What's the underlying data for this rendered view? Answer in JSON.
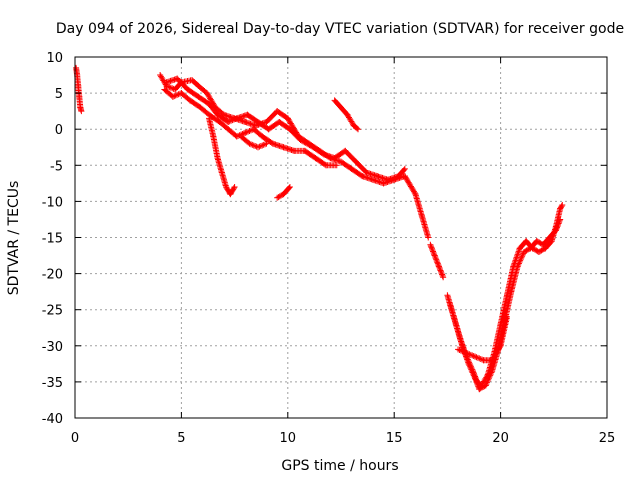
{
  "chart_data": {
    "type": "scatter",
    "title": "Day 094 of 2026, Sidereal Day-to-day VTEC variation (SDTVAR) for receiver gode",
    "xlabel": "GPS time / hours",
    "ylabel": "SDTVAR / TECUs",
    "xlim": [
      0,
      25
    ],
    "ylim": [
      -40,
      10
    ],
    "xticks": [
      0,
      5,
      10,
      15,
      20,
      25
    ],
    "yticks": [
      10,
      5,
      0,
      -5,
      -10,
      -15,
      -20,
      -25,
      -30,
      -35,
      -40
    ],
    "grid": true,
    "marker": "+",
    "series": [
      {
        "name": "SDTVAR",
        "color": "#ff0000",
        "segments": [
          [
            [
              0.05,
              8.5
            ],
            [
              0.1,
              7.5
            ],
            [
              0.15,
              6.0
            ],
            [
              0.2,
              4.5
            ],
            [
              0.25,
              3.0
            ],
            [
              0.3,
              2.5
            ]
          ],
          [
            [
              4.0,
              7.5
            ],
            [
              4.3,
              6.0
            ],
            [
              4.7,
              5.5
            ],
            [
              5.0,
              6.5
            ],
            [
              5.5,
              6.8
            ],
            [
              5.8,
              6.0
            ],
            [
              6.2,
              5.0
            ],
            [
              6.6,
              3.0
            ],
            [
              7.0,
              2.0
            ],
            [
              7.5,
              1.5
            ],
            [
              8.0,
              1.0
            ],
            [
              8.5,
              0.5
            ],
            [
              9.0,
              1.0
            ],
            [
              9.5,
              2.5
            ],
            [
              10.0,
              1.5
            ],
            [
              10.5,
              -1.0
            ],
            [
              11.0,
              -2.0
            ],
            [
              11.5,
              -3.0
            ],
            [
              12.0,
              -4.0
            ],
            [
              12.5,
              -4.5
            ],
            [
              13.0,
              -5.5
            ],
            [
              13.5,
              -6.5
            ],
            [
              14.0,
              -7.0
            ],
            [
              14.5,
              -7.5
            ],
            [
              15.0,
              -7.0
            ],
            [
              15.5,
              -6.5
            ],
            [
              16.0,
              -9.0
            ],
            [
              16.3,
              -12.0
            ],
            [
              16.6,
              -15.0
            ]
          ],
          [
            [
              4.2,
              5.5
            ],
            [
              4.6,
              4.5
            ],
            [
              5.0,
              5.0
            ],
            [
              5.4,
              4.0
            ],
            [
              5.9,
              3.0
            ],
            [
              6.3,
              2.0
            ],
            [
              6.8,
              1.0
            ],
            [
              7.2,
              0.0
            ],
            [
              7.6,
              -1.0
            ],
            [
              8.0,
              -0.5
            ],
            [
              8.4,
              0.0
            ],
            [
              8.8,
              -1.0
            ],
            [
              9.3,
              -2.0
            ],
            [
              9.8,
              -2.5
            ],
            [
              10.3,
              -3.0
            ],
            [
              10.8,
              -3.0
            ],
            [
              11.3,
              -4.0
            ],
            [
              11.8,
              -5.0
            ],
            [
              12.3,
              -5.0
            ]
          ],
          [
            [
              4.3,
              6.5
            ],
            [
              4.8,
              7.0
            ],
            [
              5.3,
              5.5
            ],
            [
              5.8,
              4.5
            ],
            [
              6.3,
              3.5
            ],
            [
              6.7,
              2.0
            ],
            [
              7.2,
              1.0
            ],
            [
              7.6,
              1.5
            ],
            [
              8.1,
              2.0
            ],
            [
              8.6,
              1.0
            ],
            [
              9.1,
              0.0
            ],
            [
              9.6,
              1.0
            ],
            [
              10.1,
              0.0
            ],
            [
              10.6,
              -1.5
            ],
            [
              11.2,
              -2.5
            ],
            [
              11.7,
              -3.5
            ],
            [
              12.2,
              -4.0
            ],
            [
              12.7,
              -3.0
            ],
            [
              13.2,
              -4.5
            ],
            [
              13.7,
              -6.0
            ],
            [
              14.2,
              -6.5
            ],
            [
              14.7,
              -7.0
            ],
            [
              15.2,
              -6.5
            ],
            [
              15.5,
              -5.5
            ]
          ],
          [
            [
              6.3,
              1.5
            ],
            [
              6.5,
              -1.0
            ],
            [
              6.7,
              -4.0
            ],
            [
              6.9,
              -6.0
            ],
            [
              7.1,
              -8.0
            ],
            [
              7.3,
              -9.0
            ],
            [
              7.5,
              -8.0
            ]
          ],
          [
            [
              7.8,
              -1.0
            ],
            [
              8.2,
              -2.0
            ],
            [
              8.6,
              -2.5
            ],
            [
              9.0,
              -2.0
            ]
          ],
          [
            [
              9.5,
              -9.5
            ],
            [
              9.8,
              -9.0
            ],
            [
              10.1,
              -8.0
            ]
          ],
          [
            [
              12.2,
              4.0
            ],
            [
              12.5,
              3.0
            ],
            [
              12.8,
              2.0
            ],
            [
              13.1,
              0.5
            ],
            [
              13.3,
              0.0
            ]
          ],
          [
            [
              16.7,
              -16.0
            ],
            [
              16.9,
              -17.5
            ],
            [
              17.1,
              -19.0
            ],
            [
              17.3,
              -20.5
            ]
          ],
          [
            [
              17.5,
              -23.0
            ],
            [
              17.8,
              -26.0
            ],
            [
              18.1,
              -29.0
            ],
            [
              18.4,
              -31.5
            ],
            [
              18.7,
              -33.5
            ],
            [
              18.9,
              -35.0
            ],
            [
              19.1,
              -35.5
            ],
            [
              19.4,
              -34.0
            ],
            [
              19.7,
              -31.0
            ],
            [
              20.0,
              -27.0
            ],
            [
              20.3,
              -23.0
            ],
            [
              20.6,
              -19.0
            ],
            [
              20.9,
              -16.5
            ],
            [
              21.2,
              -15.5
            ],
            [
              21.5,
              -16.5
            ],
            [
              21.8,
              -17.0
            ],
            [
              22.1,
              -16.5
            ],
            [
              22.4,
              -15.5
            ],
            [
              22.6,
              -13.5
            ],
            [
              22.8,
              -11.0
            ],
            [
              22.9,
              -10.5
            ]
          ],
          [
            [
              17.6,
              -24.0
            ],
            [
              17.9,
              -27.0
            ],
            [
              18.2,
              -30.0
            ],
            [
              18.5,
              -32.5
            ],
            [
              18.8,
              -34.5
            ],
            [
              19.0,
              -36.0
            ],
            [
              19.3,
              -35.5
            ],
            [
              19.6,
              -33.5
            ],
            [
              19.9,
              -30.5
            ],
            [
              20.2,
              -26.5
            ],
            [
              20.5,
              -22.5
            ],
            [
              20.8,
              -19.0
            ],
            [
              21.1,
              -17.0
            ],
            [
              21.4,
              -16.5
            ],
            [
              21.7,
              -15.5
            ],
            [
              22.0,
              -16.0
            ],
            [
              22.3,
              -15.0
            ],
            [
              22.6,
              -14.0
            ],
            [
              22.8,
              -12.5
            ]
          ],
          [
            [
              18.0,
              -30.5
            ],
            [
              18.4,
              -31.0
            ],
            [
              18.8,
              -31.5
            ],
            [
              19.2,
              -32.0
            ],
            [
              19.6,
              -32.0
            ],
            [
              20.0,
              -30.0
            ],
            [
              20.3,
              -26.0
            ]
          ]
        ]
      }
    ]
  }
}
